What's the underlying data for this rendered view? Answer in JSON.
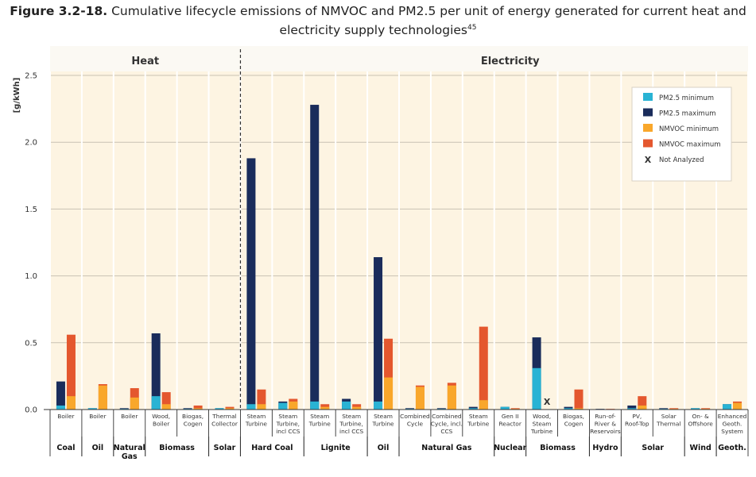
{
  "title": {
    "prefix": "Figure 3.2-18.",
    "line1": "Cumulative lifecycle emissions of NMVOC and PM2.5 per unit of energy generated for current heat and",
    "line2": "electricity supply technologies",
    "ref": "45"
  },
  "chart_data": {
    "type": "bar",
    "ylabel": "[g/kWh]",
    "ylim": [
      0,
      2.5
    ],
    "yticks": [
      "0.0",
      "0.5",
      "1.0",
      "1.5",
      "2.0",
      "2.5"
    ],
    "sections": [
      "Heat",
      "Electricity"
    ],
    "grid": true,
    "legend_position": "top-right",
    "not_analyzed_mark": "X",
    "series": [
      {
        "name": "PM2.5 minimum",
        "color": "#29b3d4"
      },
      {
        "name": "PM2.5 maximum",
        "color": "#1a2c5b"
      },
      {
        "name": "NMVOC minimum",
        "color": "#f9a72b"
      },
      {
        "name": "NMVOC maximum",
        "color": "#e4572e"
      },
      {
        "name": "Not Analyzed",
        "symbol": "X"
      }
    ],
    "groups": [
      {
        "name": "Coal",
        "lines": [
          "Coal"
        ]
      },
      {
        "name": "Oil",
        "lines": [
          "Oil"
        ]
      },
      {
        "name": "Natural Gas",
        "lines": [
          "Natural",
          "Gas"
        ]
      },
      {
        "name": "Biomass",
        "lines": [
          "Biomass"
        ]
      },
      {
        "name": "Solar",
        "lines": [
          "Solar"
        ]
      },
      {
        "name": "Hard Coal",
        "lines": [
          "Hard Coal"
        ]
      },
      {
        "name": "Lignite",
        "lines": [
          "Lignite"
        ]
      },
      {
        "name": "Oil",
        "lines": [
          "Oil"
        ]
      },
      {
        "name": "Natural Gas",
        "lines": [
          "Natural Gas"
        ]
      },
      {
        "name": "Nuclear",
        "lines": [
          "Nuclear"
        ]
      },
      {
        "name": "Biomass",
        "lines": [
          "Biomass"
        ]
      },
      {
        "name": "Hydro",
        "lines": [
          "Hydro"
        ]
      },
      {
        "name": "Solar",
        "lines": [
          "Solar"
        ]
      },
      {
        "name": "Wind",
        "lines": [
          "Wind"
        ]
      },
      {
        "name": "Geoth.",
        "lines": [
          "Geoth."
        ]
      }
    ],
    "categories": [
      {
        "label": [
          "Boiler"
        ],
        "group": 0,
        "section": "Heat",
        "pm_min": 0.03,
        "pm_max": 0.21,
        "nmvoc_min": 0.1,
        "nmvoc_max": 0.56
      },
      {
        "label": [
          "Boiler"
        ],
        "group": 1,
        "section": "Heat",
        "pm_min": 0.01,
        "pm_max": 0.01,
        "nmvoc_min": 0.18,
        "nmvoc_max": 0.19
      },
      {
        "label": [
          "Boiler"
        ],
        "group": 2,
        "section": "Heat",
        "pm_min": 0.005,
        "pm_max": 0.01,
        "nmvoc_min": 0.09,
        "nmvoc_max": 0.16
      },
      {
        "label": [
          "Wood,",
          "Boiler"
        ],
        "group": 3,
        "section": "Heat",
        "pm_min": 0.1,
        "pm_max": 0.57,
        "nmvoc_min": 0.04,
        "nmvoc_max": 0.13
      },
      {
        "label": [
          "Biogas,",
          "Cogen"
        ],
        "group": 3,
        "section": "Heat",
        "pm_min": 0.005,
        "pm_max": 0.01,
        "nmvoc_min": 0.01,
        "nmvoc_max": 0.03
      },
      {
        "label": [
          "Thermal",
          "Collector"
        ],
        "group": 4,
        "section": "Heat",
        "pm_min": 0.01,
        "pm_max": 0.01,
        "nmvoc_min": 0.01,
        "nmvoc_max": 0.02
      },
      {
        "label": [
          "Steam",
          "Turbine"
        ],
        "group": 5,
        "section": "Electricity",
        "pm_min": 0.04,
        "pm_max": 1.88,
        "nmvoc_min": 0.04,
        "nmvoc_max": 0.15
      },
      {
        "label": [
          "Steam",
          "Turbine,",
          "incl CCS"
        ],
        "group": 5,
        "section": "Electricity",
        "pm_min": 0.05,
        "pm_max": 0.06,
        "nmvoc_min": 0.06,
        "nmvoc_max": 0.08
      },
      {
        "label": [
          "Steam",
          "Turbine"
        ],
        "group": 6,
        "section": "Electricity",
        "pm_min": 0.06,
        "pm_max": 2.28,
        "nmvoc_min": 0.02,
        "nmvoc_max": 0.04
      },
      {
        "label": [
          "Steam",
          "Turbine,",
          "incl CCS"
        ],
        "group": 6,
        "section": "Electricity",
        "pm_min": 0.06,
        "pm_max": 0.08,
        "nmvoc_min": 0.02,
        "nmvoc_max": 0.04
      },
      {
        "label": [
          "Steam",
          "Turbine"
        ],
        "group": 7,
        "section": "Electricity",
        "pm_min": 0.06,
        "pm_max": 1.14,
        "nmvoc_min": 0.24,
        "nmvoc_max": 0.53
      },
      {
        "label": [
          "Combined",
          "Cycle"
        ],
        "group": 8,
        "section": "Electricity",
        "pm_min": 0.005,
        "pm_max": 0.01,
        "nmvoc_min": 0.17,
        "nmvoc_max": 0.18
      },
      {
        "label": [
          "Combined",
          "Cycle, incl.",
          "CCS"
        ],
        "group": 8,
        "section": "Electricity",
        "pm_min": 0.005,
        "pm_max": 0.01,
        "nmvoc_min": 0.18,
        "nmvoc_max": 0.2
      },
      {
        "label": [
          "Steam",
          "Turbine"
        ],
        "group": 8,
        "section": "Electricity",
        "pm_min": 0.01,
        "pm_max": 0.02,
        "nmvoc_min": 0.07,
        "nmvoc_max": 0.62
      },
      {
        "label": [
          "Gen II",
          "Reactor"
        ],
        "group": 9,
        "section": "Electricity",
        "pm_min": 0.02,
        "pm_max": 0.02,
        "nmvoc_min": 0.005,
        "nmvoc_max": 0.01
      },
      {
        "label": [
          "Wood,",
          "Steam",
          "Turbine"
        ],
        "group": 10,
        "section": "Electricity",
        "pm_min": 0.31,
        "pm_max": 0.54,
        "nmvoc_min": null,
        "nmvoc_max": null,
        "not_analyzed": true
      },
      {
        "label": [
          "Biogas,",
          "Cogen"
        ],
        "group": 10,
        "section": "Electricity",
        "pm_min": 0.01,
        "pm_max": 0.02,
        "nmvoc_min": 0.01,
        "nmvoc_max": 0.15
      },
      {
        "label": [
          "Run-of-",
          "River &",
          "Reservoirs"
        ],
        "group": 11,
        "section": "Electricity",
        "pm_min": 0.003,
        "pm_max": 0.005,
        "nmvoc_min": 0.003,
        "nmvoc_max": 0.005
      },
      {
        "label": [
          "PV,",
          "Roof-Top"
        ],
        "group": 12,
        "section": "Electricity",
        "pm_min": 0.01,
        "pm_max": 0.03,
        "nmvoc_min": 0.03,
        "nmvoc_max": 0.1
      },
      {
        "label": [
          "Solar",
          "Thermal"
        ],
        "group": 12,
        "section": "Electricity",
        "pm_min": 0.005,
        "pm_max": 0.01,
        "nmvoc_min": 0.005,
        "nmvoc_max": 0.01
      },
      {
        "label": [
          "On- &",
          "Offshore"
        ],
        "group": 13,
        "section": "Electricity",
        "pm_min": 0.01,
        "pm_max": 0.01,
        "nmvoc_min": 0.005,
        "nmvoc_max": 0.01
      },
      {
        "label": [
          "Enhanced",
          "Geoth.",
          "System"
        ],
        "group": 14,
        "section": "Electricity",
        "pm_min": 0.04,
        "pm_max": 0.04,
        "nmvoc_min": 0.05,
        "nmvoc_max": 0.06
      }
    ]
  }
}
